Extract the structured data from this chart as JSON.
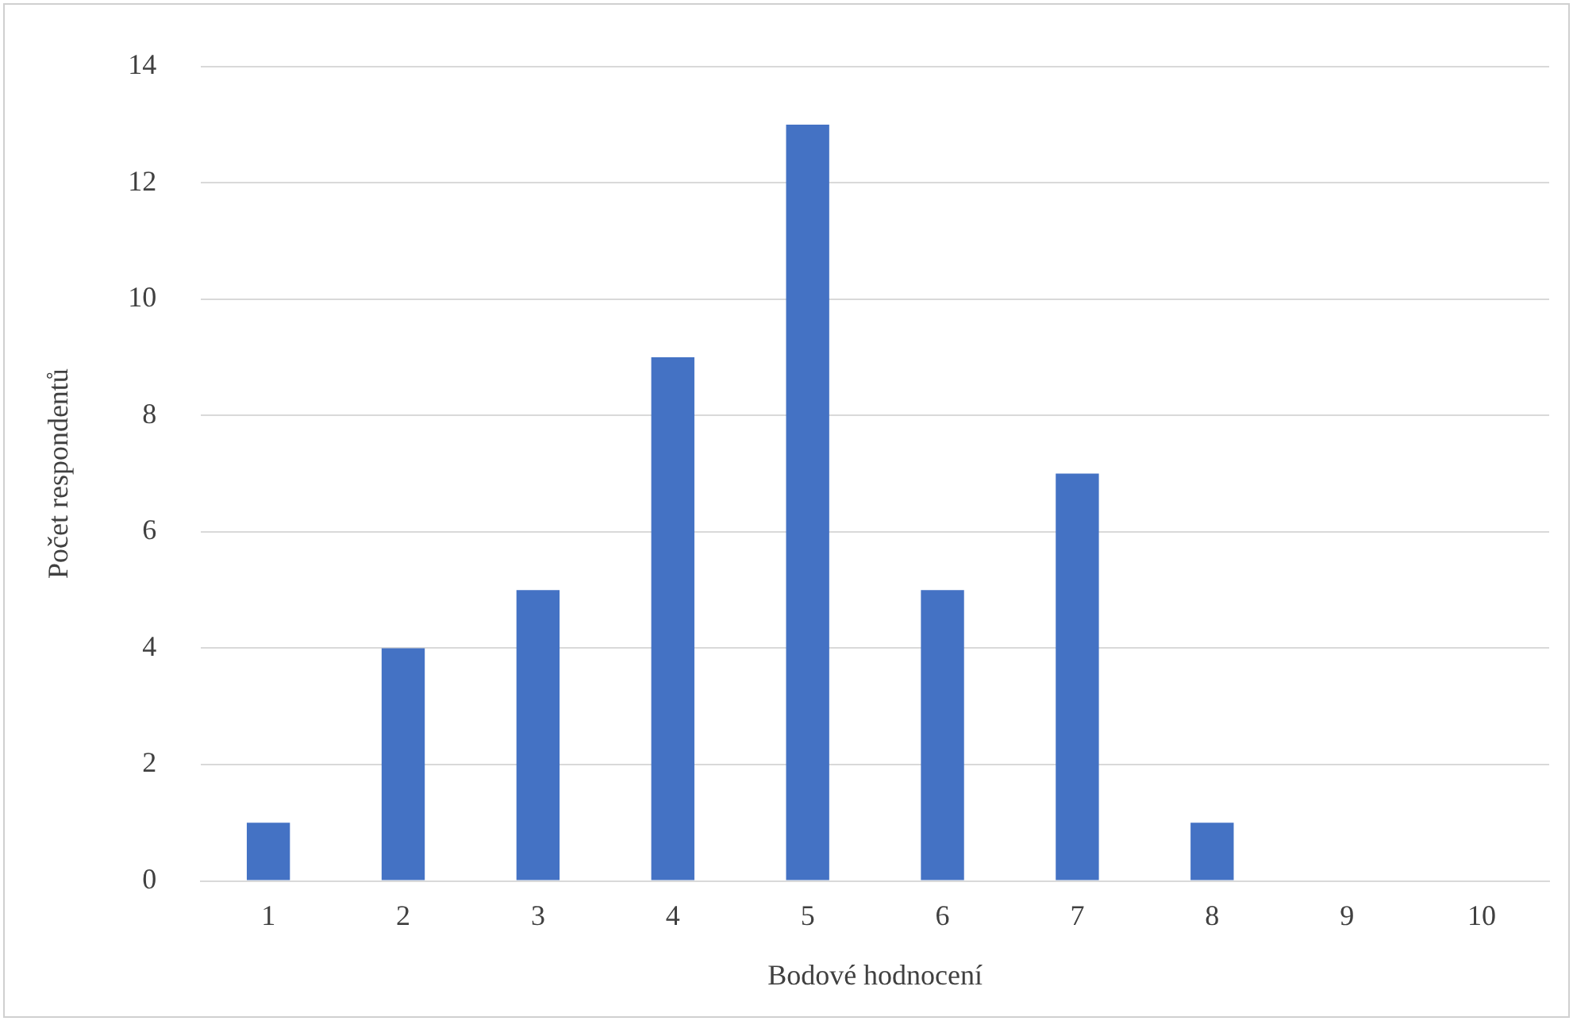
{
  "chart_data": {
    "type": "bar",
    "xlabel": "Bodové hodnocení",
    "ylabel": "Počet respondentů",
    "categories": [
      "1",
      "2",
      "3",
      "4",
      "5",
      "6",
      "7",
      "8",
      "9",
      "10"
    ],
    "values": [
      1,
      4,
      5,
      9,
      13,
      5,
      7,
      1,
      0,
      0
    ],
    "color": "#4472c4",
    "ylim": [
      0,
      14
    ],
    "yticks": [
      0,
      2,
      4,
      6,
      8,
      10,
      12,
      14
    ],
    "grid": "y",
    "legend": false
  }
}
